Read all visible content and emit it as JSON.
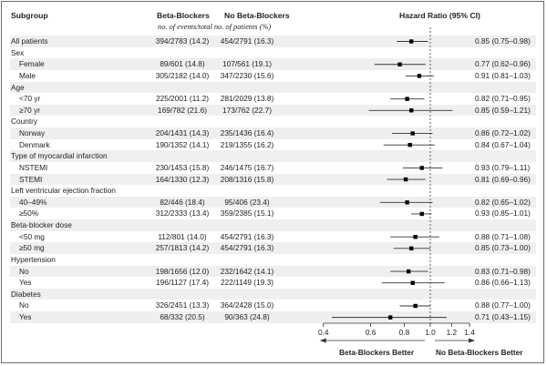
{
  "headers": {
    "subgroup": "Subgroup",
    "bb": "Beta-Blockers",
    "nobb": "No Beta-Blockers",
    "sub": "no. of events/total no. of patients (%)",
    "hr": "Hazard Ratio (95% CI)"
  },
  "chart_data": {
    "type": "forest",
    "xscale": "log",
    "xlim": [
      0.4,
      1.4
    ],
    "xticks": [
      "0.4",
      "0.6",
      "0.8",
      "1.0",
      "1.2",
      "1.4"
    ],
    "reference_line": 1.0,
    "left_label": "Beta-Blockers Better",
    "right_label": "No Beta-Blockers Better",
    "rows": [
      {
        "label": "All patients",
        "level": 0,
        "bb": "394/2783 (14.2)",
        "nobb": "454/2791 (16.3)",
        "hr": 0.85,
        "lo": 0.75,
        "hi": 0.98,
        "text": "0.85 (0.75–0.98)"
      },
      {
        "label": "Sex",
        "level": 0
      },
      {
        "label": "Female",
        "level": 1,
        "bb": "89/601 (14.8)",
        "nobb": "107/561 (19.1)",
        "hr": 0.77,
        "lo": 0.62,
        "hi": 0.96,
        "text": "0.77 (0.62–0.96)"
      },
      {
        "label": "Male",
        "level": 1,
        "bb": "305/2182 (14.0)",
        "nobb": "347/2230 (15.6)",
        "hr": 0.91,
        "lo": 0.81,
        "hi": 1.03,
        "text": "0.91 (0.81–1.03)"
      },
      {
        "label": "Age",
        "level": 0
      },
      {
        "label": "<70 yr",
        "level": 1,
        "bb": "225/2001 (11.2)",
        "nobb": "281/2029 (13.8)",
        "hr": 0.82,
        "lo": 0.71,
        "hi": 0.95,
        "text": "0.82 (0.71–0.95)"
      },
      {
        "label": "≥70 yr",
        "level": 1,
        "bb": "169/782 (21.6)",
        "nobb": "173/762 (22.7)",
        "hr": 0.85,
        "lo": 0.59,
        "hi": 1.21,
        "text": "0.85 (0.59–1.21)"
      },
      {
        "label": "Country",
        "level": 0
      },
      {
        "label": "Norway",
        "level": 1,
        "bb": "204/1431 (14.3)",
        "nobb": "235/1436 (16.4)",
        "hr": 0.86,
        "lo": 0.72,
        "hi": 1.02,
        "text": "0.86 (0.72–1.02)"
      },
      {
        "label": "Denmark",
        "level": 1,
        "bb": "190/1352 (14.1)",
        "nobb": "219/1355 (16.2)",
        "hr": 0.84,
        "lo": 0.67,
        "hi": 1.04,
        "text": "0.84 (0.67–1.04)"
      },
      {
        "label": "Type of myocardial infarction",
        "level": 0
      },
      {
        "label": "NSTEMI",
        "level": 1,
        "bb": "230/1453 (15.8)",
        "nobb": "246/1475 (16.7)",
        "hr": 0.93,
        "lo": 0.79,
        "hi": 1.11,
        "text": "0.93 (0.79–1.11)"
      },
      {
        "label": "STEMI",
        "level": 1,
        "bb": "164/1330 (12.3)",
        "nobb": "208/1316 (15.8)",
        "hr": 0.81,
        "lo": 0.69,
        "hi": 0.96,
        "text": "0.81 (0.69–0.96)"
      },
      {
        "label": "Left ventricular ejection fraction",
        "level": 0
      },
      {
        "label": "40–49%",
        "level": 1,
        "bb": "82/446 (18.4)",
        "nobb": "95/406 (23.4)",
        "hr": 0.82,
        "lo": 0.65,
        "hi": 1.02,
        "text": "0.82 (0.65–1.02)"
      },
      {
        "label": "≥50%",
        "level": 1,
        "bb": "312/2333 (13.4)",
        "nobb": "359/2385 (15.1)",
        "hr": 0.93,
        "lo": 0.85,
        "hi": 1.01,
        "text": "0.93 (0.85–1.01)"
      },
      {
        "label": "Beta-blocker dose",
        "level": 0
      },
      {
        "label": "<50 mg",
        "level": 1,
        "bb": "112/801 (14.0)",
        "nobb": "454/2791 (16.3)",
        "hr": 0.88,
        "lo": 0.71,
        "hi": 1.08,
        "text": "0.88 (0.71–1.08)"
      },
      {
        "label": "≥50 mg",
        "level": 1,
        "bb": "257/1813 (14.2)",
        "nobb": "454/2791 (16.3)",
        "hr": 0.85,
        "lo": 0.73,
        "hi": 1.0,
        "text": "0.85 (0.73–1.00)"
      },
      {
        "label": "Hypertension",
        "level": 0
      },
      {
        "label": "No",
        "level": 1,
        "bb": "198/1656 (12.0)",
        "nobb": "232/1642 (14.1)",
        "hr": 0.83,
        "lo": 0.71,
        "hi": 0.98,
        "text": "0.83 (0.71–0.98)"
      },
      {
        "label": "Yes",
        "level": 1,
        "bb": "196/1127 (17.4)",
        "nobb": "222/1149 (19.3)",
        "hr": 0.86,
        "lo": 0.66,
        "hi": 1.13,
        "text": "0.86 (0.66–1.13)"
      },
      {
        "label": "Diabetes",
        "level": 0
      },
      {
        "label": "No",
        "level": 1,
        "bb": "326/2451 (13.3)",
        "nobb": "364/2428 (15.0)",
        "hr": 0.88,
        "lo": 0.77,
        "hi": 1.0,
        "text": "0.88 (0.77–1.00)"
      },
      {
        "label": "Yes",
        "level": 1,
        "bb": "68/332 (20.5)",
        "nobb": "90/363 (24.8)",
        "hr": 0.71,
        "lo": 0.43,
        "hi": 1.15,
        "text": "0.71 (0.43–1.15)"
      }
    ]
  }
}
